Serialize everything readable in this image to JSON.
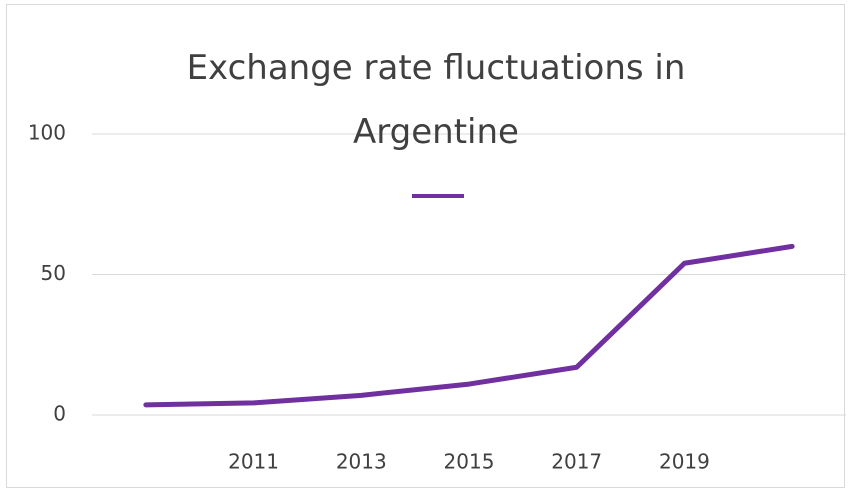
{
  "chart_data": {
    "type": "line",
    "title": "Exchange rate fluctuations in Argentine",
    "x": [
      2009,
      2011,
      2013,
      2015,
      2017,
      2019,
      2021
    ],
    "series": [
      {
        "color": "#7030a0",
        "values": [
          3.6,
          4.3,
          7,
          11,
          17,
          54,
          60
        ]
      }
    ],
    "xlim": [
      2008,
      2022
    ],
    "xticks": [
      2011,
      2013,
      2015,
      2017,
      2019
    ],
    "ylim": [
      0,
      100
    ],
    "yticks": [
      0,
      50,
      100
    ],
    "grid": true
  }
}
